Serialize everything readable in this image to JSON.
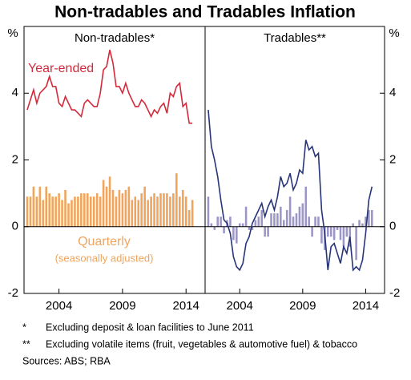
{
  "title": "Non-tradables and Tradables Inflation",
  "y_label": "%",
  "footnotes": [
    {
      "mark": "*",
      "text": "Excluding deposit & loan facilities to June 2011"
    },
    {
      "mark": "**",
      "text": "Excluding volatile items (fruit, vegetables & automotive fuel) & tobacco"
    }
  ],
  "sources": "Sources:  ABS; RBA",
  "chart_data": [
    {
      "type": "line",
      "title": "Non-tradables*",
      "x": [
        2001.5,
        2001.75,
        2002,
        2002.25,
        2002.5,
        2002.75,
        2003,
        2003.25,
        2003.5,
        2003.75,
        2004,
        2004.25,
        2004.5,
        2004.75,
        2005,
        2005.25,
        2005.5,
        2005.75,
        2006,
        2006.25,
        2006.5,
        2006.75,
        2007,
        2007.25,
        2007.5,
        2007.75,
        2008,
        2008.25,
        2008.5,
        2008.75,
        2009,
        2009.25,
        2009.5,
        2009.75,
        2010,
        2010.25,
        2010.5,
        2010.75,
        2011,
        2011.25,
        2011.5,
        2011.75,
        2012,
        2012.25,
        2012.5,
        2012.75,
        2013,
        2013.25,
        2013.5,
        2013.75,
        2014,
        2014.25,
        2014.5
      ],
      "series": [
        {
          "name": "Year-ended",
          "kind": "line",
          "color": "#d4293a",
          "values": [
            3.5,
            3.8,
            4.1,
            3.7,
            4.0,
            4.1,
            4.2,
            4.5,
            4.2,
            4.2,
            3.7,
            3.6,
            3.9,
            3.7,
            3.5,
            3.5,
            3.4,
            3.3,
            3.7,
            3.8,
            3.7,
            3.6,
            3.6,
            4.0,
            4.7,
            4.8,
            5.3,
            4.9,
            4.2,
            4.2,
            4.0,
            4.3,
            4.0,
            3.8,
            3.6,
            3.6,
            3.8,
            3.7,
            3.5,
            3.3,
            3.5,
            3.4,
            3.6,
            3.7,
            3.4,
            4.0,
            3.9,
            4.2,
            4.3,
            3.6,
            3.7,
            3.1,
            3.1
          ]
        },
        {
          "name": "Quarterly",
          "note": "(seasonally adjusted)",
          "kind": "bar",
          "color": "#f0a45c",
          "values": [
            0.9,
            0.9,
            1.2,
            0.9,
            1.2,
            0.8,
            1.2,
            1.0,
            0.9,
            0.9,
            1.0,
            0.8,
            1.1,
            0.7,
            0.8,
            0.9,
            0.9,
            1.0,
            1.0,
            1.0,
            0.9,
            0.9,
            1.0,
            0.9,
            1.4,
            1.2,
            1.5,
            1.1,
            0.9,
            1.1,
            1.0,
            1.1,
            1.2,
            0.8,
            0.9,
            0.8,
            1.0,
            1.2,
            0.8,
            0.9,
            1.0,
            0.9,
            1.0,
            1.0,
            1.0,
            0.9,
            1.0,
            1.6,
            0.9,
            1.1,
            0.9,
            0.5,
            0.8
          ]
        }
      ],
      "xlim": [
        2001.25,
        2015.5
      ],
      "xticks": [
        2004,
        2009,
        2014
      ],
      "ylim": [
        -2,
        6
      ],
      "yticks": [
        -2,
        0,
        2,
        4
      ]
    },
    {
      "type": "line",
      "title": "Tradables**",
      "x": [
        2001.5,
        2001.75,
        2002,
        2002.25,
        2002.5,
        2002.75,
        2003,
        2003.25,
        2003.5,
        2003.75,
        2004,
        2004.25,
        2004.5,
        2004.75,
        2005,
        2005.25,
        2005.5,
        2005.75,
        2006,
        2006.25,
        2006.5,
        2006.75,
        2007,
        2007.25,
        2007.5,
        2007.75,
        2008,
        2008.25,
        2008.5,
        2008.75,
        2009,
        2009.25,
        2009.5,
        2009.75,
        2010,
        2010.25,
        2010.5,
        2010.75,
        2011,
        2011.25,
        2011.5,
        2011.75,
        2012,
        2012.25,
        2012.5,
        2012.75,
        2013,
        2013.25,
        2013.5,
        2013.75,
        2014,
        2014.25,
        2014.5
      ],
      "series": [
        {
          "kind": "line",
          "color": "#27347a",
          "values": [
            3.5,
            2.4,
            2.0,
            1.5,
            0.8,
            0.2,
            0.1,
            -0.2,
            -0.9,
            -1.2,
            -1.3,
            -1.1,
            -0.5,
            -0.3,
            0.1,
            0.3,
            0.5,
            0.7,
            0.3,
            0.6,
            0.8,
            0.5,
            0.9,
            1.5,
            1.2,
            1.3,
            1.6,
            1.1,
            1.3,
            1.7,
            1.6,
            2.6,
            2.3,
            2.4,
            2.1,
            2.2,
            0.5,
            -0.2,
            -1.3,
            -0.6,
            -0.5,
            -0.8,
            -1.1,
            -0.6,
            -0.8,
            -0.3,
            -1.3,
            -1.2,
            -1.3,
            -1.0,
            -0.2,
            0.8,
            1.2
          ]
        },
        {
          "kind": "bar",
          "color": "#9b96c6",
          "values": [
            0.9,
            0.1,
            -0.1,
            0.3,
            0.3,
            -0.2,
            0.2,
            0.3,
            -0.4,
            -0.5,
            0.1,
            0.1,
            0.6,
            -0.1,
            -0.1,
            0.2,
            0.3,
            0.5,
            -0.3,
            -0.3,
            0.4,
            0.4,
            0.4,
            0.6,
            0.2,
            0.5,
            0.9,
            0.3,
            0.4,
            0.6,
            0.7,
            1.2,
            0.3,
            -0.3,
            0.3,
            0.3,
            -0.5,
            -0.7,
            -0.3,
            -0.3,
            -0.4,
            -0.1,
            -0.4,
            -0.6,
            -0.3,
            -0.6,
            0.1,
            -1.0,
            0.2,
            0.1,
            0.3,
            0.5,
            0.5
          ]
        }
      ],
      "xlim": [
        2001.25,
        2015.5
      ],
      "xticks": [
        2004,
        2009,
        2014
      ],
      "ylim": [
        -2,
        6
      ],
      "yticks": [
        -2,
        0,
        2,
        4
      ]
    }
  ]
}
